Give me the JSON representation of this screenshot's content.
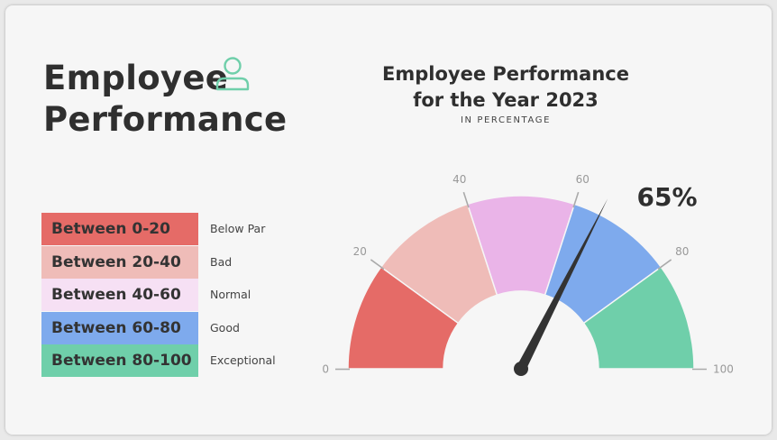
{
  "heading": {
    "line1": "Employee",
    "line2": "Performance"
  },
  "icons": {
    "person": "person-outline-icon"
  },
  "chart_data": {
    "type": "gauge",
    "title_line1": "Employee Performance",
    "title_line2": "for the Year 2023",
    "subtitle": "IN PERCENTAGE",
    "min": 0,
    "max": 100,
    "value": 65,
    "value_label": "65%",
    "ticks": [
      {
        "value": 0,
        "label": "0"
      },
      {
        "value": 20,
        "label": "20"
      },
      {
        "value": 40,
        "label": "40"
      },
      {
        "value": 60,
        "label": "60"
      },
      {
        "value": 80,
        "label": "80"
      },
      {
        "value": 100,
        "label": "100"
      }
    ],
    "segments": [
      {
        "from": 0,
        "to": 20,
        "range_label": "Between 0-20",
        "rating": "Below Par",
        "color": "#e56b67"
      },
      {
        "from": 20,
        "to": 40,
        "range_label": "Between 20-40",
        "rating": "Bad",
        "color": "#efbcb8"
      },
      {
        "from": 40,
        "to": 60,
        "range_label": "Between 40-60",
        "rating": "Normal",
        "color": "#eab4e8"
      },
      {
        "from": 60,
        "to": 80,
        "range_label": "Between 60-80",
        "rating": "Good",
        "color": "#7eaaed"
      },
      {
        "from": 80,
        "to": 100,
        "range_label": "Between 80-100",
        "rating": "Exceptional",
        "color": "#6fcfaa"
      }
    ],
    "legend_colors": [
      "#e56b67",
      "#efbcb8",
      "#f6e0f4",
      "#7eaaed",
      "#6fcfaa"
    ],
    "needle_color": "#333333",
    "tick_color": "#aaaaaa",
    "tick_label_color": "#999999",
    "accent_color": "#6fcfaa"
  }
}
